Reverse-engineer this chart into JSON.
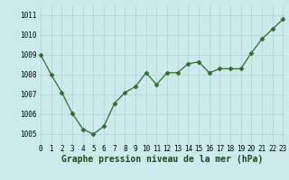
{
  "x": [
    0,
    1,
    2,
    3,
    4,
    5,
    6,
    7,
    8,
    9,
    10,
    11,
    12,
    13,
    14,
    15,
    16,
    17,
    18,
    19,
    20,
    21,
    22,
    23
  ],
  "y": [
    1009.0,
    1008.0,
    1007.1,
    1006.05,
    1005.25,
    1005.0,
    1005.4,
    1006.55,
    1007.1,
    1007.4,
    1008.1,
    1007.5,
    1008.1,
    1008.1,
    1008.55,
    1008.65,
    1008.1,
    1008.3,
    1008.3,
    1008.3,
    1009.1,
    1009.8,
    1010.3,
    1010.8
  ],
  "line_color": "#2d6e2d",
  "marker": "D",
  "marker_size": 2.5,
  "bg_color": "#cdeaea",
  "grid_color": "#a8d5d5",
  "xlabel": "Graphe pression niveau de la mer (hPa)",
  "xlabel_fontsize": 7,
  "tick_fontsize": 5.5,
  "ylim": [
    1004.5,
    1011.5
  ],
  "yticks": [
    1005,
    1006,
    1007,
    1008,
    1009,
    1010,
    1011
  ],
  "xlim": [
    -0.3,
    23.3
  ],
  "xticks": [
    0,
    1,
    2,
    3,
    4,
    5,
    6,
    7,
    8,
    9,
    10,
    11,
    12,
    13,
    14,
    15,
    16,
    17,
    18,
    19,
    20,
    21,
    22,
    23
  ],
  "xtick_labels": [
    "0",
    "1",
    "2",
    "3",
    "4",
    "5",
    "6",
    "7",
    "8",
    "9",
    "10",
    "11",
    "12",
    "13",
    "14",
    "15",
    "16",
    "17",
    "18",
    "19",
    "20",
    "21",
    "22",
    "23"
  ]
}
